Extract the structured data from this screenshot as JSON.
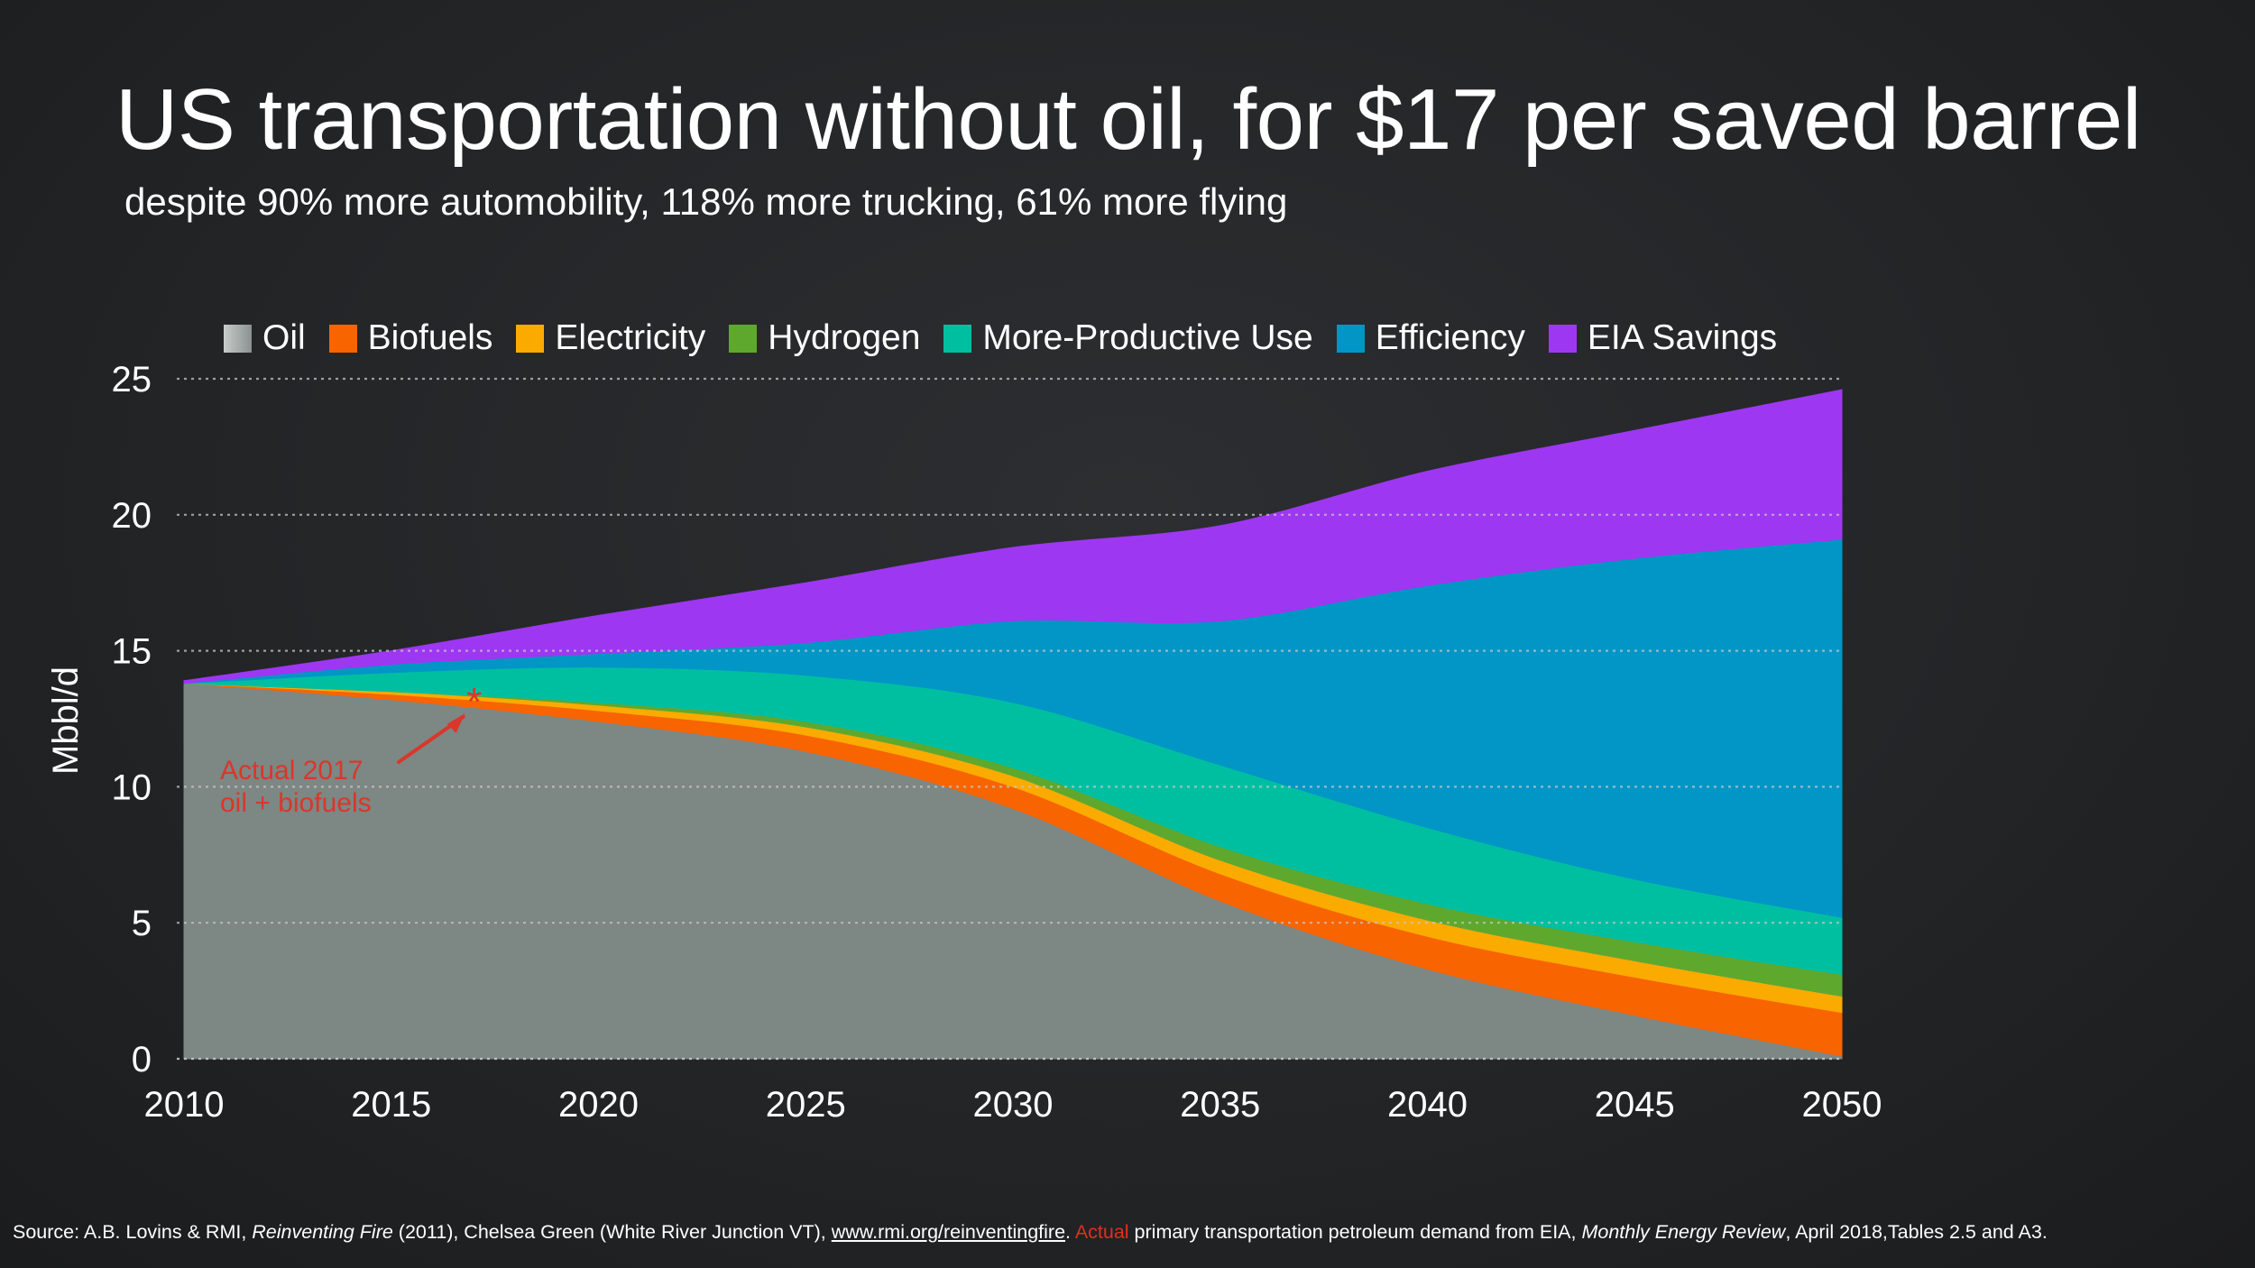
{
  "title": "US transportation without oil, for $17 per saved barrel",
  "subtitle": "despite 90% more automobility, 118% more trucking, 61% more flying",
  "footer": {
    "source_prefix": "Source: A.B. Lovins & RMI, ",
    "book": "Reinventing Fire",
    "source_mid": " (2011), Chelsea Green (White River Junction VT), ",
    "url": "www.rmi.org/reinventingfire",
    "after_url": ". ",
    "actual": "Actual",
    "demand": " primary transportation petroleum demand from EIA, ",
    "journal": "Monthly Energy Review",
    "suffix": ", April 2018,Tables 2.5 and A3."
  },
  "colors": {
    "accent_red": "#d9372b"
  },
  "chart_data": {
    "type": "area",
    "stacked": true,
    "ylabel": "Mbbl/d",
    "xlabel": "",
    "xlim": [
      2010,
      2050
    ],
    "ylim": [
      0,
      25
    ],
    "xticks": [
      2010,
      2015,
      2020,
      2025,
      2030,
      2035,
      2040,
      2045,
      2050
    ],
    "yticks": [
      0,
      5,
      10,
      15,
      20,
      25
    ],
    "grid": "horizontal dotted",
    "legend_position": "top",
    "x": [
      2010,
      2015,
      2020,
      2025,
      2030,
      2035,
      2040,
      2045,
      2050
    ],
    "series": [
      {
        "name": "Oil",
        "color": "#7d8784",
        "values": [
          13.8,
          13.2,
          12.4,
          11.3,
          9.2,
          5.8,
          3.3,
          1.6,
          0.1
        ]
      },
      {
        "name": "Biofuels",
        "color": "#f76400",
        "values": [
          0.0,
          0.2,
          0.4,
          0.6,
          0.8,
          1.0,
          1.2,
          1.4,
          1.6
        ]
      },
      {
        "name": "Electricity",
        "color": "#fbaa00",
        "values": [
          0.0,
          0.1,
          0.2,
          0.3,
          0.4,
          0.5,
          0.6,
          0.6,
          0.6
        ]
      },
      {
        "name": "Hydrogen",
        "color": "#5fa82e",
        "values": [
          0.0,
          0.0,
          0.1,
          0.2,
          0.3,
          0.5,
          0.6,
          0.7,
          0.8
        ]
      },
      {
        "name": "More-Productive Use",
        "color": "#00bfa1",
        "values": [
          0.0,
          0.7,
          1.3,
          1.7,
          2.4,
          3.0,
          2.8,
          2.3,
          2.1
        ]
      },
      {
        "name": "Efficiency",
        "color": "#0196c5",
        "values": [
          0.0,
          0.3,
          0.5,
          1.2,
          3.0,
          5.3,
          8.9,
          11.8,
          13.9
        ]
      },
      {
        "name": "EIA Savings",
        "color": "#9e37f2",
        "values": [
          0.1,
          0.5,
          1.4,
          2.2,
          2.7,
          3.5,
          4.2,
          4.7,
          5.5
        ]
      }
    ],
    "annotation": {
      "text_line1": "Actual 2017",
      "text_line2": "oil + biofuels",
      "point_year": 2017,
      "point_value": 13.3,
      "marker": "*",
      "color": "#d9372b"
    }
  }
}
